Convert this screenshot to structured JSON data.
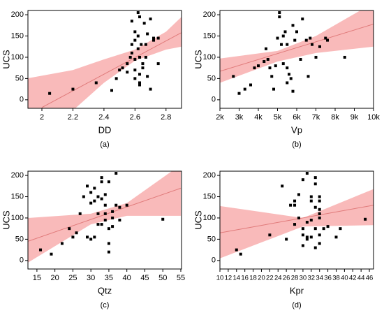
{
  "chart_data": [
    {
      "type": "scatter",
      "caption": "(a)",
      "x_label": "DD",
      "y_label": "UCS",
      "color": "#000000",
      "fit_color": "#e07a7a",
      "band_color": "#f8a9a9",
      "x": [
        2.05,
        2.2,
        2.35,
        2.45,
        2.48,
        2.5,
        2.52,
        2.55,
        2.55,
        2.57,
        2.58,
        2.58,
        2.58,
        2.6,
        2.6,
        2.6,
        2.6,
        2.6,
        2.62,
        2.62,
        2.62,
        2.63,
        2.63,
        2.63,
        2.63,
        2.64,
        2.65,
        2.65,
        2.66,
        2.67,
        2.67,
        2.68,
        2.68,
        2.7,
        2.7,
        2.72,
        2.72,
        2.75,
        2.75,
        2.63
      ],
      "values": [
        15,
        25,
        40,
        22,
        50,
        70,
        75,
        65,
        85,
        100,
        110,
        130,
        185,
        160,
        140,
        95,
        70,
        50,
        205,
        150,
        120,
        195,
        100,
        60,
        40,
        130,
        75,
        85,
        180,
        130,
        100,
        155,
        55,
        190,
        25,
        140,
        145,
        85,
        145,
        35
      ],
      "fit": {
        "x": [
          2.0,
          2.9
        ],
        "y": [
          -18,
          158
        ]
      },
      "band": {
        "x": [
          1.9,
          2.2,
          2.4,
          2.6,
          2.8,
          2.9
        ],
        "upper": [
          50,
          70,
          95,
          118,
          160,
          195
        ],
        "lower": [
          -110,
          -25,
          40,
          92,
          118,
          125
        ]
      },
      "xlim": [
        1.91,
        2.9
      ],
      "xticks": [
        2.0,
        2.2,
        2.4,
        2.6,
        2.8
      ],
      "ylim": [
        -20,
        210
      ],
      "yticks": [
        0,
        50,
        100,
        150,
        200
      ]
    },
    {
      "type": "scatter",
      "caption": "(b)",
      "x_label": "Vp",
      "y_label": "UCS",
      "color": "#000000",
      "fit_color": "#e07a7a",
      "band_color": "#f8a9a9",
      "x": [
        2700,
        3000,
        3300,
        3600,
        3800,
        4000,
        4300,
        4400,
        4500,
        4600,
        4700,
        4800,
        4900,
        5000,
        5100,
        5100,
        5200,
        5300,
        5400,
        5500,
        5500,
        5500,
        5600,
        5700,
        5800,
        5800,
        5900,
        6000,
        6200,
        6300,
        6500,
        6600,
        6700,
        6800,
        7000,
        7200,
        7500,
        7600,
        8500,
        5300
      ],
      "values": [
        55,
        15,
        25,
        35,
        75,
        80,
        90,
        120,
        95,
        75,
        55,
        25,
        80,
        145,
        195,
        205,
        130,
        150,
        160,
        130,
        75,
        40,
        60,
        50,
        175,
        20,
        140,
        160,
        95,
        190,
        140,
        55,
        145,
        130,
        100,
        125,
        145,
        140,
        100,
        85
      ],
      "fit": {
        "x": [
          2000,
          10000
        ],
        "y": [
          67,
          178
        ]
      },
      "band": {
        "x": [
          2000,
          5000,
          7000,
          10000
        ],
        "upper": [
          97,
          115,
          150,
          228
        ],
        "lower": [
          40,
          90,
          110,
          125
        ]
      },
      "xlim": [
        2000,
        10000
      ],
      "xticks": [
        {
          "value": 2000,
          "label": "2k"
        },
        {
          "value": 3000,
          "label": "3k"
        },
        {
          "value": 4000,
          "label": "4k"
        },
        {
          "value": 5000,
          "label": "5k"
        },
        {
          "value": 6000,
          "label": "6k"
        },
        {
          "value": 7000,
          "label": "7k"
        },
        {
          "value": 8000,
          "label": "8k"
        },
        {
          "value": 9000,
          "label": "9k"
        },
        {
          "value": 10000,
          "label": "10k"
        }
      ],
      "ylim": [
        -20,
        210
      ],
      "yticks": [
        0,
        50,
        100,
        150,
        200
      ]
    },
    {
      "type": "scatter",
      "caption": "(c)",
      "x_label": "Qtz",
      "y_label": "UCS",
      "color": "#000000",
      "fit_color": "#e07a7a",
      "band_color": "#f8a9a9",
      "x": [
        16,
        19,
        22,
        24,
        25,
        27,
        28,
        29,
        29,
        30,
        30,
        30,
        31,
        31,
        32,
        32,
        33,
        33,
        33,
        33,
        34,
        34,
        34,
        35,
        35,
        35,
        35,
        36,
        36,
        37,
        37,
        38,
        38,
        40,
        50,
        31,
        26,
        32,
        36,
        34
      ],
      "values": [
        25,
        15,
        40,
        75,
        55,
        110,
        150,
        175,
        55,
        50,
        135,
        160,
        170,
        140,
        150,
        110,
        85,
        195,
        185,
        145,
        95,
        130,
        110,
        75,
        40,
        20,
        185,
        115,
        80,
        205,
        130,
        125,
        95,
        130,
        97,
        55,
        65,
        85,
        100,
        155
      ],
      "fit": {
        "x": [
          12.5,
          55
        ],
        "y": [
          45,
          170
        ]
      },
      "band": {
        "x": [
          12.5,
          30,
          40,
          55
        ],
        "upper": [
          100,
          110,
          135,
          225
        ],
        "lower": [
          -5,
          85,
          105,
          105
        ]
      },
      "xlim": [
        12.5,
        55.2
      ],
      "xticks": [
        15,
        20,
        25,
        30,
        35,
        40,
        45,
        50,
        55
      ],
      "ylim": [
        -20,
        210
      ],
      "yticks": [
        0,
        50,
        100,
        150,
        200
      ]
    },
    {
      "type": "scatter",
      "caption": "(d)",
      "x_label": "Kpr",
      "y_label": "UCS",
      "color": "#000000",
      "fit_color": "#e07a7a",
      "band_color": "#f8a9a9",
      "x": [
        14,
        15,
        22,
        25,
        26,
        27,
        28,
        28,
        29,
        30,
        30,
        30,
        31,
        31,
        31,
        32,
        32,
        32,
        33,
        33,
        33,
        33,
        34,
        34,
        34,
        34,
        34,
        34,
        34,
        35,
        36,
        38,
        39,
        45,
        31,
        30,
        32,
        33,
        28,
        29
      ],
      "values": [
        25,
        15,
        60,
        175,
        50,
        130,
        140,
        85,
        100,
        190,
        75,
        35,
        205,
        90,
        55,
        150,
        140,
        95,
        195,
        180,
        125,
        75,
        150,
        140,
        120,
        110,
        100,
        60,
        40,
        75,
        80,
        55,
        75,
        97,
        50,
        60,
        55,
        30,
        130,
        155
      ],
      "fit": {
        "x": [
          10,
          47
        ],
        "y": [
          65,
          130
        ]
      },
      "band": {
        "x": [
          10,
          30,
          47
        ],
        "upper": [
          128,
          100,
          168
        ],
        "lower": [
          5,
          80,
          83
        ]
      },
      "xlim": [
        10,
        47
      ],
      "xticks": [
        10,
        12,
        14,
        16,
        18,
        20,
        22,
        24,
        26,
        28,
        30,
        32,
        34,
        36,
        38,
        40,
        42,
        44,
        46
      ],
      "ylim": [
        -20,
        210
      ],
      "yticks": [
        0,
        50,
        100,
        150,
        200
      ]
    }
  ]
}
